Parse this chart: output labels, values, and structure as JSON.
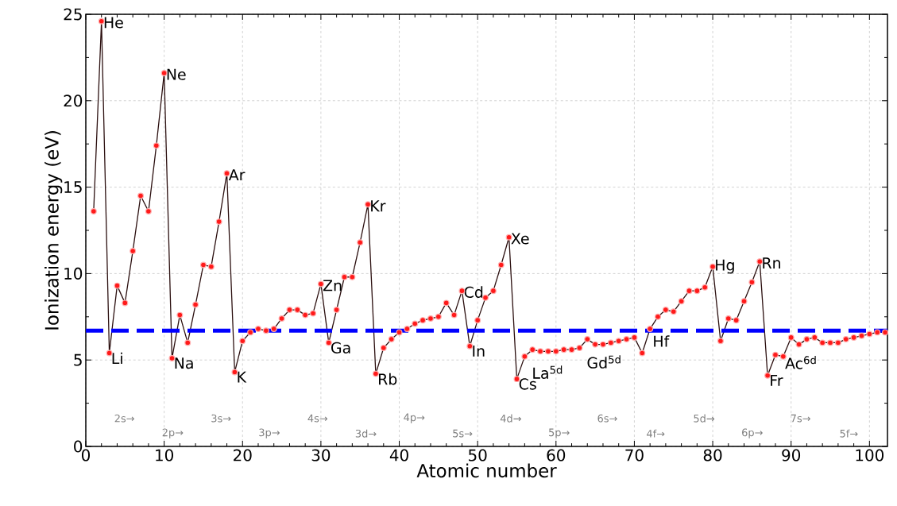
{
  "chart_data": {
    "type": "line",
    "xlabel": "Atomic number",
    "ylabel": "Ionization energy (eV)",
    "x": [
      1,
      2,
      3,
      4,
      5,
      6,
      7,
      8,
      9,
      10,
      11,
      12,
      13,
      14,
      15,
      16,
      17,
      18,
      19,
      20,
      21,
      22,
      23,
      24,
      25,
      26,
      27,
      28,
      29,
      30,
      31,
      32,
      33,
      34,
      35,
      36,
      37,
      38,
      39,
      40,
      41,
      42,
      43,
      44,
      45,
      46,
      47,
      48,
      49,
      50,
      51,
      52,
      53,
      54,
      55,
      56,
      57,
      58,
      59,
      60,
      61,
      62,
      63,
      64,
      65,
      66,
      67,
      68,
      69,
      70,
      71,
      72,
      73,
      74,
      75,
      76,
      77,
      78,
      79,
      80,
      81,
      82,
      83,
      84,
      85,
      86,
      87,
      88,
      89,
      90,
      91,
      92,
      93,
      94,
      95,
      96,
      97,
      98,
      99,
      100,
      101,
      102
    ],
    "series": [
      {
        "color": "#ff1a1a",
        "values": [
          13.6,
          24.6,
          5.4,
          9.3,
          8.3,
          11.3,
          14.5,
          13.6,
          17.4,
          21.6,
          5.1,
          7.6,
          6.0,
          8.2,
          10.5,
          10.4,
          13.0,
          15.8,
          4.3,
          6.1,
          6.6,
          6.8,
          6.7,
          6.8,
          7.4,
          7.9,
          7.9,
          7.6,
          7.7,
          9.4,
          6.0,
          7.9,
          9.8,
          9.8,
          11.8,
          14.0,
          4.2,
          5.7,
          6.2,
          6.6,
          6.8,
          7.1,
          7.3,
          7.4,
          7.5,
          8.3,
          7.6,
          9.0,
          5.8,
          7.3,
          8.6,
          9.0,
          10.5,
          12.1,
          3.9,
          5.2,
          5.6,
          5.5,
          5.5,
          5.5,
          5.6,
          5.6,
          5.7,
          6.2,
          5.9,
          5.9,
          6.0,
          6.1,
          6.2,
          6.3,
          5.4,
          6.8,
          7.5,
          7.9,
          7.8,
          8.4,
          9.0,
          9.0,
          9.2,
          10.4,
          6.1,
          7.4,
          7.3,
          8.4,
          9.5,
          10.7,
          4.1,
          5.3,
          5.2,
          6.3,
          5.9,
          6.2,
          6.3,
          6.0,
          6.0,
          6.0,
          6.2,
          6.3,
          6.4,
          6.5,
          6.6,
          6.6
        ]
      }
    ],
    "xlim": [
      0,
      102.3
    ],
    "ylim": [
      0,
      25
    ],
    "xticks": [
      0,
      10,
      20,
      30,
      40,
      50,
      60,
      70,
      80,
      90,
      100
    ],
    "yticks": [
      0,
      5,
      10,
      15,
      20,
      25
    ],
    "grid": true,
    "marker": "circle",
    "line_style": "solid",
    "ref_lines": [
      {
        "axis": "y",
        "value": 6.7,
        "color": "#0000ff",
        "line_style": "dashed"
      }
    ],
    "annotations": [
      {
        "text": "He",
        "x": 2,
        "y": 24.6
      },
      {
        "text": "Ne",
        "x": 10,
        "y": 21.6
      },
      {
        "text": "Ar",
        "x": 18,
        "y": 15.8
      },
      {
        "text": "Kr",
        "x": 36,
        "y": 14.0
      },
      {
        "text": "Xe",
        "x": 54,
        "y": 12.1
      },
      {
        "text": "Rn",
        "x": 86,
        "y": 10.7
      },
      {
        "text": "Zn",
        "x": 30,
        "y": 9.4
      },
      {
        "text": "Cd",
        "x": 48,
        "y": 9.0
      },
      {
        "text": "Hg",
        "x": 80,
        "y": 10.4
      },
      {
        "text": "Li",
        "x": 3,
        "y": 5.4
      },
      {
        "text": "Na",
        "x": 11,
        "y": 5.1
      },
      {
        "text": "K",
        "x": 19,
        "y": 4.3
      },
      {
        "text": "Rb",
        "x": 37,
        "y": 4.2
      },
      {
        "text": "Cs",
        "x": 55,
        "y": 3.9
      },
      {
        "text": "Fr",
        "x": 87,
        "y": 4.1
      },
      {
        "text": "Ga",
        "x": 31,
        "y": 6.0
      },
      {
        "text": "In",
        "x": 49,
        "y": 5.8
      },
      {
        "text": "La$^{5d}$",
        "x": 57,
        "y": 5.6
      },
      {
        "text": "Gd$^{5d}$",
        "x": 64,
        "y": 6.2
      },
      {
        "text": "Hf",
        "x": 72,
        "y": 6.8
      },
      {
        "text": "Ac$^{6d}$",
        "x": 89,
        "y": 5.2
      },
      "2s→",
      "2p→",
      "3s→",
      "3p→",
      "4s→",
      "3d→",
      "4p→",
      "5s→",
      "4d→",
      "5p→",
      "6s→",
      "4f→",
      "5d→",
      "6p→",
      "7s→",
      "5f→"
    ]
  }
}
